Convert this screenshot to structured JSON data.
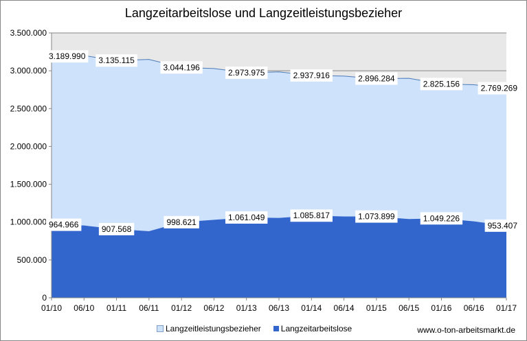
{
  "chart_data": {
    "type": "area",
    "title": "Langzeitarbeitslose und Langzeitleistungsbezieher",
    "x": [
      "01/10",
      "06/10",
      "01/11",
      "06/11",
      "01/12",
      "06/12",
      "01/13",
      "06/13",
      "01/14",
      "06/14",
      "01/15",
      "06/15",
      "01/16",
      "06/16",
      "01/17"
    ],
    "series": [
      {
        "name": "Langzeitleistungsbezieher",
        "color": "#cfe2fb",
        "values": [
          3189990,
          3200000,
          3135115,
          3150000,
          3044196,
          3030000,
          2973975,
          2985000,
          2937916,
          2930000,
          2896284,
          2900000,
          2825156,
          2815000,
          2769269
        ],
        "data_labels": [
          {
            "x": "01/10",
            "value": 3189990,
            "text": "3.189.990"
          },
          {
            "x": "01/11",
            "value": 3135115,
            "text": "3.135.115"
          },
          {
            "x": "01/12",
            "value": 3044196,
            "text": "3.044.196"
          },
          {
            "x": "01/13",
            "value": 2973975,
            "text": "2.973.975"
          },
          {
            "x": "01/14",
            "value": 2937916,
            "text": "2.937.916"
          },
          {
            "x": "01/15",
            "value": 2896284,
            "text": "2.896.284"
          },
          {
            "x": "01/16",
            "value": 2825156,
            "text": "2.825.156"
          },
          {
            "x": "01/17",
            "value": 2769269,
            "text": "2.769.269"
          }
        ]
      },
      {
        "name": "Langzeitarbeitslose",
        "color": "#3366cc",
        "values": [
          964966,
          955000,
          907568,
          880000,
          998621,
          1030000,
          1061049,
          1055000,
          1085817,
          1075000,
          1073899,
          1040000,
          1049226,
          1010000,
          953407
        ],
        "data_labels": [
          {
            "x": "01/10",
            "value": 964966,
            "text": "964.966"
          },
          {
            "x": "01/11",
            "value": 907568,
            "text": "907.568"
          },
          {
            "x": "01/12",
            "value": 998621,
            "text": "998.621"
          },
          {
            "x": "01/13",
            "value": 1061049,
            "text": "1.061.049"
          },
          {
            "x": "01/14",
            "value": 1085817,
            "text": "1.085.817"
          },
          {
            "x": "01/15",
            "value": 1073899,
            "text": "1.073.899"
          },
          {
            "x": "01/16",
            "value": 1049226,
            "text": "1.049.226"
          },
          {
            "x": "01/17",
            "value": 953407,
            "text": "953.407"
          }
        ]
      }
    ],
    "ylim": [
      0,
      3500000
    ],
    "yticks": [
      0,
      500000,
      1000000,
      1500000,
      2000000,
      2500000,
      3000000,
      3500000
    ],
    "ytick_labels": [
      "0",
      "500.000",
      "1.000.000",
      "1.500.000",
      "2.000.000",
      "2.500.000",
      "3.000.000",
      "3.500.000"
    ],
    "grid": true,
    "legend_position": "bottom",
    "plot_background_color": "#e8e8e8",
    "grid_color": "#868686"
  },
  "source": "www.o-ton-arbeitsmarkt.de"
}
